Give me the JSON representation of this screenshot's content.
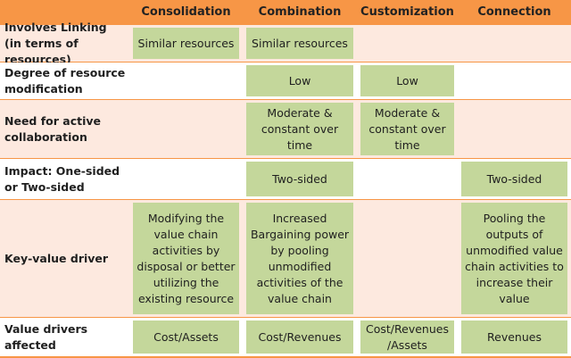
{
  "table": {
    "header": [
      null,
      "Consolidation",
      "Combination",
      "Customization",
      "Connection"
    ],
    "rows": [
      [
        "Involves Linking (in terms of resources)",
        "Similar resources",
        "Similar resources",
        null,
        null
      ],
      [
        "Degree of resource modification",
        null,
        "Low",
        "Low",
        null
      ],
      [
        "Need for active collaboration",
        null,
        "Moderate & constant over time",
        "Moderate & constant over time",
        null
      ],
      [
        "Impact: One-sided or Two-sided",
        null,
        "Two-sided",
        null,
        "Two-sided"
      ],
      [
        "Key-value driver",
        "Modifying the value chain activities by disposal or better utilizing the existing resource",
        "Increased Bargaining power by pooling unmodified activities of the value chain",
        null,
        "Pooling the outputs of unmodified value chain activities to increase their value"
      ],
      [
        "Value drivers affected",
        "Cost/Assets",
        "Cost/Revenues",
        "Cost/Revenues /Assets",
        "Revenues"
      ]
    ]
  }
}
